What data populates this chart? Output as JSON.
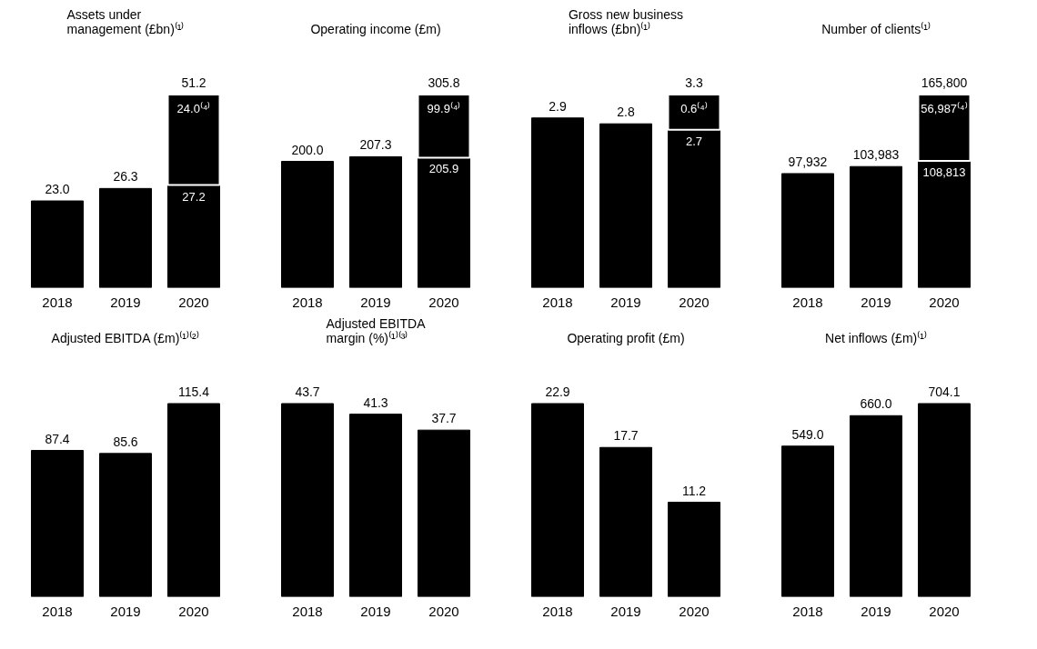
{
  "chart_data": [
    {
      "type": "bar",
      "title": "Assets under management (£bn)⁽¹⁾",
      "categories": [
        "2018",
        "2019",
        "2020"
      ],
      "stacked": true,
      "series": [
        {
          "color": "#000000",
          "values": [
            23.0,
            26.3,
            27.2
          ],
          "value_labels": [
            "23.0",
            "26.3",
            "27.2"
          ]
        },
        {
          "color": "#000000",
          "values": [
            null,
            null,
            24.0
          ],
          "value_labels": [
            null,
            null,
            "24.0⁽⁴⁾"
          ]
        }
      ],
      "totals": [
        null,
        null,
        "51.2"
      ]
    },
    {
      "type": "bar",
      "title": "Operating income (£m)",
      "categories": [
        "2018",
        "2019",
        "2020"
      ],
      "stacked": true,
      "series": [
        {
          "color": "#000000",
          "values": [
            200.0,
            207.3,
            205.9
          ],
          "value_labels": [
            "200.0",
            "207.3",
            "205.9"
          ]
        },
        {
          "color": "#000000",
          "values": [
            null,
            null,
            99.9
          ],
          "value_labels": [
            null,
            null,
            "99.9⁽⁴⁾"
          ]
        }
      ],
      "totals": [
        null,
        null,
        "305.8"
      ]
    },
    {
      "type": "bar",
      "title": "Gross new business inflows (£bn)⁽¹⁾",
      "categories": [
        "2018",
        "2019",
        "2020"
      ],
      "stacked": true,
      "series": [
        {
          "color": "#000000",
          "values": [
            2.9,
            2.8,
            2.7
          ],
          "value_labels": [
            "2.9",
            "2.8",
            "2.7"
          ]
        },
        {
          "color": "#000000",
          "values": [
            null,
            null,
            0.6
          ],
          "value_labels": [
            null,
            null,
            "0.6⁽⁴⁾"
          ]
        }
      ],
      "totals": [
        null,
        null,
        "3.3"
      ]
    },
    {
      "type": "bar",
      "title": "Number of clients⁽¹⁾",
      "categories": [
        "2018",
        "2019",
        "2020"
      ],
      "stacked": true,
      "series": [
        {
          "color": "#000000",
          "values": [
            97932,
            103983,
            108813
          ],
          "value_labels": [
            "97,932",
            "103,983",
            "108,813"
          ]
        },
        {
          "color": "#000000",
          "values": [
            null,
            null,
            56987
          ],
          "value_labels": [
            null,
            null,
            "56,987⁽⁴⁾"
          ]
        }
      ],
      "totals": [
        null,
        null,
        "165,800"
      ]
    },
    {
      "type": "bar",
      "title": "Adjusted EBITDA (£m)⁽¹⁾⁽²⁾",
      "categories": [
        "2018",
        "2019",
        "2020"
      ],
      "values": [
        87.4,
        85.6,
        115.4
      ],
      "color": "#000000",
      "data_labels": true
    },
    {
      "type": "bar",
      "title": "Adjusted EBITDA margin (%)⁽¹⁾⁽³⁾",
      "categories": [
        "2018",
        "2019",
        "2020"
      ],
      "values": [
        43.7,
        41.3,
        37.7
      ],
      "color": "#000000",
      "data_labels": true
    },
    {
      "type": "bar",
      "title": "Operating profit (£m)",
      "categories": [
        "2018",
        "2019",
        "2020"
      ],
      "values": [
        22.9,
        17.7,
        11.2
      ],
      "color": "#000000",
      "data_labels": true
    },
    {
      "type": "bar",
      "title": "Net inflows (£m)⁽¹⁾",
      "categories": [
        "2018",
        "2019",
        "2020"
      ],
      "values": [
        549.0,
        660.0,
        704.1
      ],
      "value_labels": [
        "549.0",
        "660.0",
        "704.1"
      ],
      "color": "#000000"
    }
  ]
}
